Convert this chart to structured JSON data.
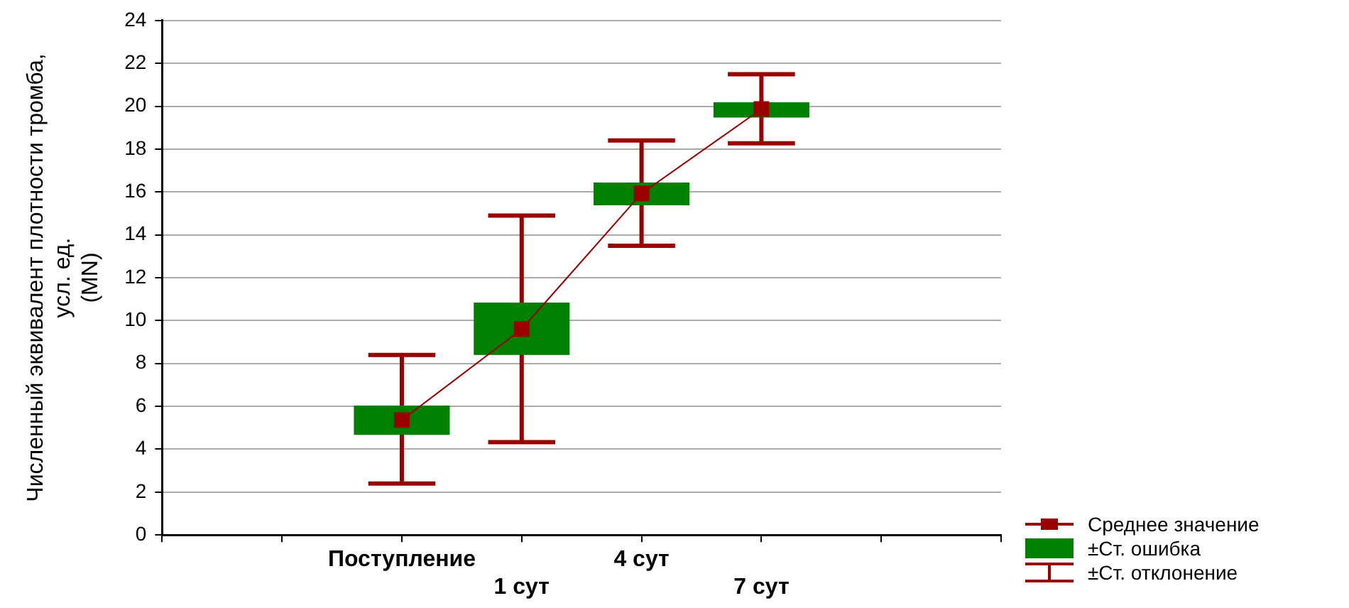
{
  "chart_data": {
    "type": "box",
    "ylabel": "Численный эквивалент плотности тромба,\nусл. ед.\n(MN)",
    "categories": [
      null,
      null,
      "Поступление",
      "1 сут",
      "4 сут",
      "7 сут",
      null,
      null
    ],
    "color": "#008000",
    "boxes": [
      null,
      null,
      {
        "low": 2.4,
        "q1": 4.67,
        "q3": 6.04,
        "high": 8.4
      },
      {
        "low": 4.33,
        "q1": 8.4,
        "q3": 10.84,
        "high": 14.9
      },
      {
        "low": 13.49,
        "q1": 15.38,
        "q3": 16.44,
        "high": 18.4
      },
      {
        "low": 18.27,
        "q1": 19.47,
        "q3": 20.18,
        "high": 21.49
      },
      null,
      null
    ],
    "series": [
      {
        "name": "Среднее значение",
        "type": "line",
        "color": "#990000",
        "marker": "square",
        "values": [
          null,
          null,
          5.36,
          9.6,
          15.93,
          19.87,
          null,
          null
        ]
      }
    ],
    "annotations": [
      "±Ст. ошибка",
      "±Ст. отклонение"
    ],
    "ylim": [
      0,
      24
    ],
    "yticks": [
      0,
      2,
      4,
      6,
      8,
      10,
      12,
      14,
      16,
      18,
      20,
      22,
      24
    ],
    "grid": "y",
    "legend": "bottom right"
  }
}
